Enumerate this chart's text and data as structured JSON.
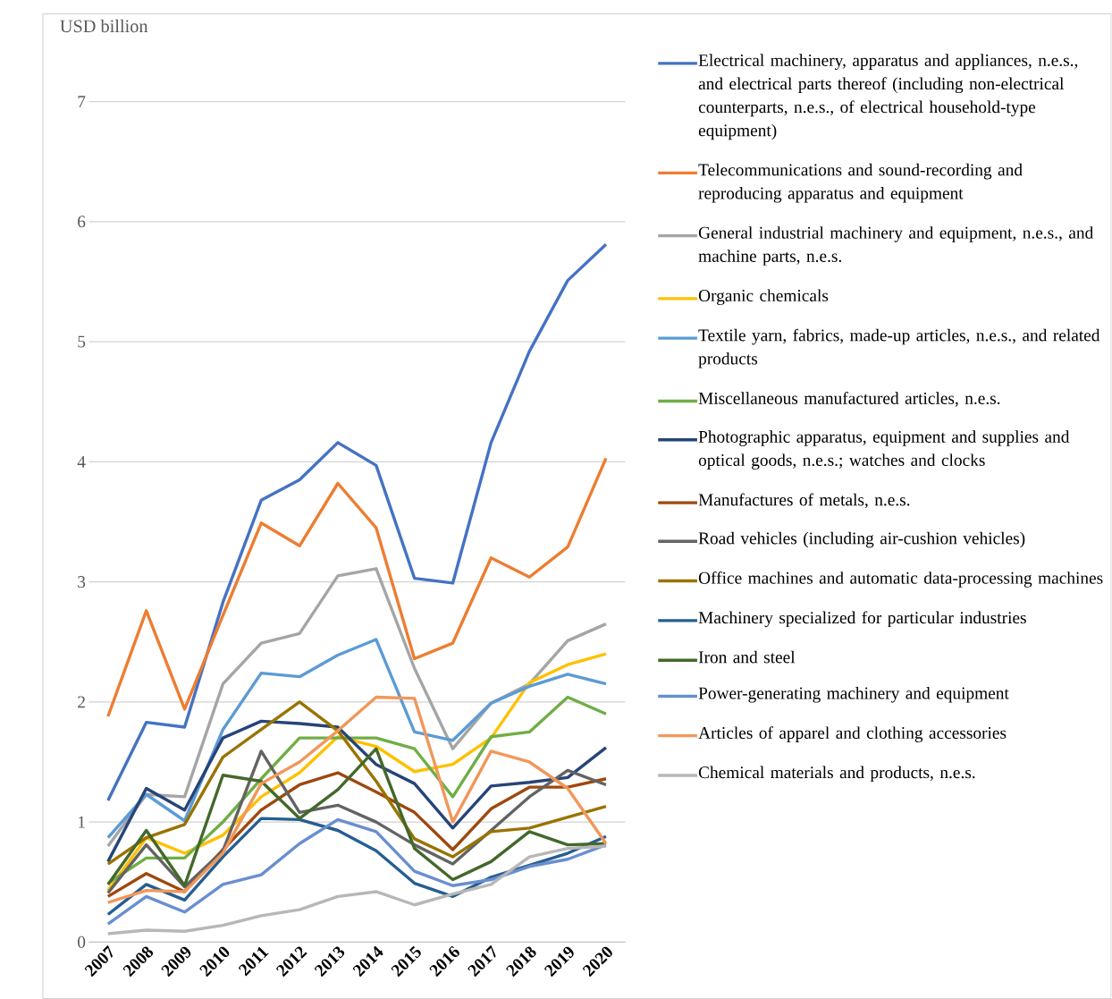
{
  "chart_data": {
    "type": "line",
    "ylabel": "USD billion",
    "categories": [
      "2007",
      "2008",
      "2009",
      "2010",
      "2011",
      "2012",
      "2013",
      "2014",
      "2015",
      "2016",
      "2017",
      "2018",
      "2019",
      "2020"
    ],
    "series": [
      {
        "name": "Electrical machinery, apparatus and appliances, n.e.s., and electrical parts thereof (including non-electrical counterparts, n.e.s., of electrical household-type equipment)",
        "color": "#4472c4",
        "values": [
          1.18,
          1.83,
          1.79,
          2.83,
          3.68,
          3.85,
          4.16,
          3.97,
          3.03,
          2.99,
          4.16,
          4.92,
          5.51,
          5.81
        ]
      },
      {
        "name": "Telecommunications and sound-recording and reproducing apparatus and equipment",
        "color": "#ed7d31",
        "values": [
          1.88,
          2.76,
          1.94,
          2.72,
          3.49,
          3.3,
          3.82,
          3.45,
          2.36,
          2.49,
          3.2,
          3.04,
          3.29,
          4.03
        ]
      },
      {
        "name": "General industrial machinery and equipment, n.e.s., and machine parts, n.e.s.",
        "color": "#a5a5a5",
        "values": [
          0.8,
          1.23,
          1.21,
          2.15,
          2.49,
          2.57,
          3.05,
          3.11,
          2.28,
          1.61,
          1.99,
          2.15,
          2.51,
          2.65
        ]
      },
      {
        "name": "Organic chemicals",
        "color": "#ffc000",
        "values": [
          0.43,
          0.87,
          0.74,
          0.89,
          1.21,
          1.41,
          1.71,
          1.63,
          1.42,
          1.48,
          1.7,
          2.16,
          2.31,
          2.4
        ]
      },
      {
        "name": "Textile yarn, fabrics, made-up articles, n.e.s., and related products",
        "color": "#5b9bd5",
        "values": [
          0.87,
          1.23,
          1.01,
          1.77,
          2.24,
          2.21,
          2.39,
          2.52,
          1.75,
          1.68,
          1.99,
          2.13,
          2.23,
          2.15
        ]
      },
      {
        "name": "Miscellaneous manufactured articles, n.e.s.",
        "color": "#70ad47",
        "values": [
          0.49,
          0.7,
          0.7,
          1.0,
          1.36,
          1.7,
          1.7,
          1.7,
          1.61,
          1.21,
          1.71,
          1.75,
          2.04,
          1.9
        ]
      },
      {
        "name": "Photographic apparatus, equipment and supplies and optical goods, n.e.s.; watches and clocks",
        "color": "#264478",
        "values": [
          0.67,
          1.28,
          1.1,
          1.7,
          1.84,
          1.82,
          1.79,
          1.48,
          1.32,
          0.95,
          1.3,
          1.33,
          1.37,
          1.62
        ]
      },
      {
        "name": "Manufactures of metals, n.e.s.",
        "color": "#9e480e",
        "values": [
          0.38,
          0.57,
          0.42,
          0.77,
          1.1,
          1.31,
          1.41,
          1.25,
          1.08,
          0.77,
          1.11,
          1.29,
          1.29,
          1.36
        ]
      },
      {
        "name": "Road vehicles (including air-cushion vehicles)",
        "color": "#636363",
        "values": [
          0.41,
          0.81,
          0.46,
          0.76,
          1.59,
          1.08,
          1.14,
          1.0,
          0.81,
          0.65,
          0.93,
          1.21,
          1.43,
          1.31
        ]
      },
      {
        "name": "Office machines and automatic data-processing machines",
        "color": "#997300",
        "values": [
          0.65,
          0.87,
          0.98,
          1.54,
          1.77,
          2.0,
          1.76,
          1.34,
          0.86,
          0.71,
          0.92,
          0.95,
          1.04,
          1.13
        ]
      },
      {
        "name": "Machinery specialized for particular industries",
        "color": "#255e91",
        "values": [
          0.23,
          0.48,
          0.35,
          0.71,
          1.03,
          1.02,
          0.93,
          0.76,
          0.49,
          0.38,
          0.54,
          0.64,
          0.74,
          0.88
        ]
      },
      {
        "name": "Iron and steel",
        "color": "#43682b",
        "values": [
          0.48,
          0.93,
          0.47,
          1.39,
          1.34,
          1.03,
          1.27,
          1.61,
          0.78,
          0.52,
          0.67,
          0.92,
          0.81,
          0.82
        ]
      },
      {
        "name": "Power-generating machinery and equipment",
        "color": "#698ed0",
        "values": [
          0.15,
          0.38,
          0.25,
          0.48,
          0.56,
          0.82,
          1.02,
          0.92,
          0.59,
          0.47,
          0.52,
          0.63,
          0.69,
          0.81
        ]
      },
      {
        "name": "Articles of apparel and clothing accessories",
        "color": "#f1975a",
        "values": [
          0.33,
          0.43,
          0.42,
          0.74,
          1.32,
          1.5,
          1.76,
          2.04,
          2.03,
          1.0,
          1.59,
          1.5,
          1.28,
          0.82
        ]
      },
      {
        "name": "Chemical materials and products, n.e.s.",
        "color": "#b7b7b7",
        "values": [
          0.07,
          0.1,
          0.09,
          0.14,
          0.22,
          0.27,
          0.38,
          0.42,
          0.31,
          0.4,
          0.48,
          0.71,
          0.78,
          0.8
        ]
      }
    ],
    "ylim": [
      0,
      7
    ],
    "yticks": [
      0,
      1,
      2,
      3,
      4,
      5,
      6,
      7
    ],
    "grid": "y",
    "legend": "right"
  }
}
